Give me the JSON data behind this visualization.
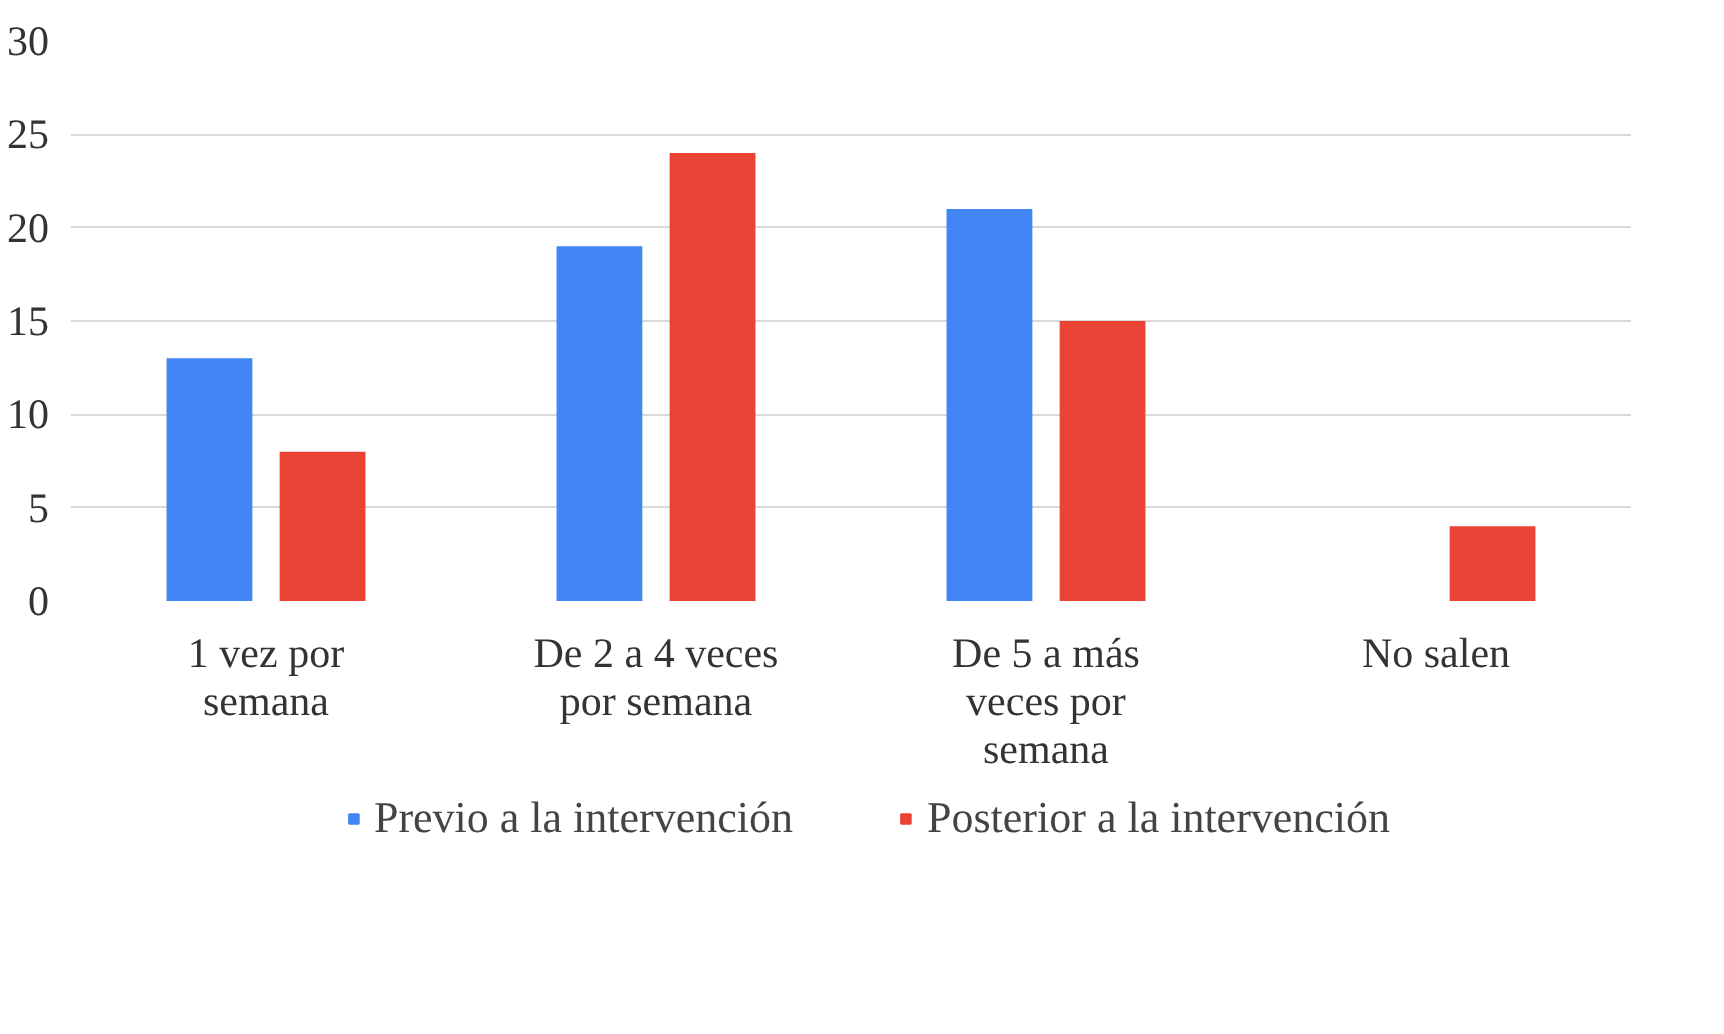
{
  "chart_data": {
    "type": "bar",
    "categories": [
      "1 vez por semana",
      "De 2 a 4 veces por semana",
      "De 5 a más veces por semana",
      "No salen"
    ],
    "series": [
      {
        "name": "Previo a la intervención",
        "color": "#4285f4",
        "values": [
          13,
          19,
          21,
          0
        ]
      },
      {
        "name": "Posterior a la intervención",
        "color": "#ea4335",
        "values": [
          8,
          24,
          15,
          4
        ]
      }
    ],
    "ylim": [
      0,
      30
    ],
    "yticks": [
      0,
      5,
      10,
      15,
      20,
      25,
      30
    ],
    "grid": "y",
    "legend": "bottom"
  }
}
